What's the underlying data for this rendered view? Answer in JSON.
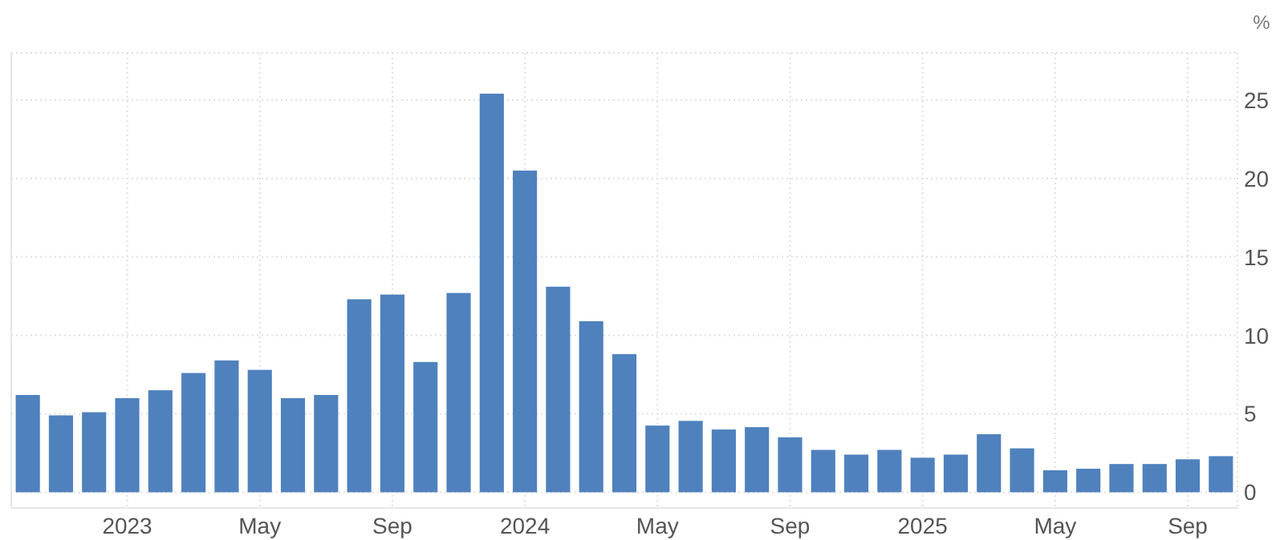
{
  "chart_data": {
    "type": "bar",
    "ylabel": "%",
    "categories": [
      null,
      null,
      null,
      "2023",
      null,
      null,
      null,
      "May",
      null,
      null,
      null,
      "Sep",
      null,
      null,
      null,
      "2024",
      null,
      null,
      null,
      "May",
      null,
      null,
      null,
      "Sep",
      null,
      null,
      null,
      "2025",
      null,
      null,
      null,
      "May",
      null,
      null,
      null,
      "Sep",
      null
    ],
    "values": [
      6.2,
      4.9,
      5.1,
      6.0,
      6.5,
      7.6,
      8.4,
      7.8,
      6.0,
      6.2,
      12.3,
      12.6,
      8.3,
      12.7,
      25.4,
      20.5,
      13.1,
      10.9,
      8.8,
      4.25,
      4.55,
      4.0,
      4.15,
      3.5,
      2.7,
      2.4,
      2.7,
      2.2,
      2.4,
      3.7,
      2.8,
      1.4,
      1.5,
      1.8,
      1.8,
      2.1,
      2.3
    ],
    "color": "#4f81bd",
    "ylim": [
      -1,
      28
    ],
    "yticks": [
      0,
      5,
      10,
      15,
      20,
      25
    ],
    "grid": true
  }
}
